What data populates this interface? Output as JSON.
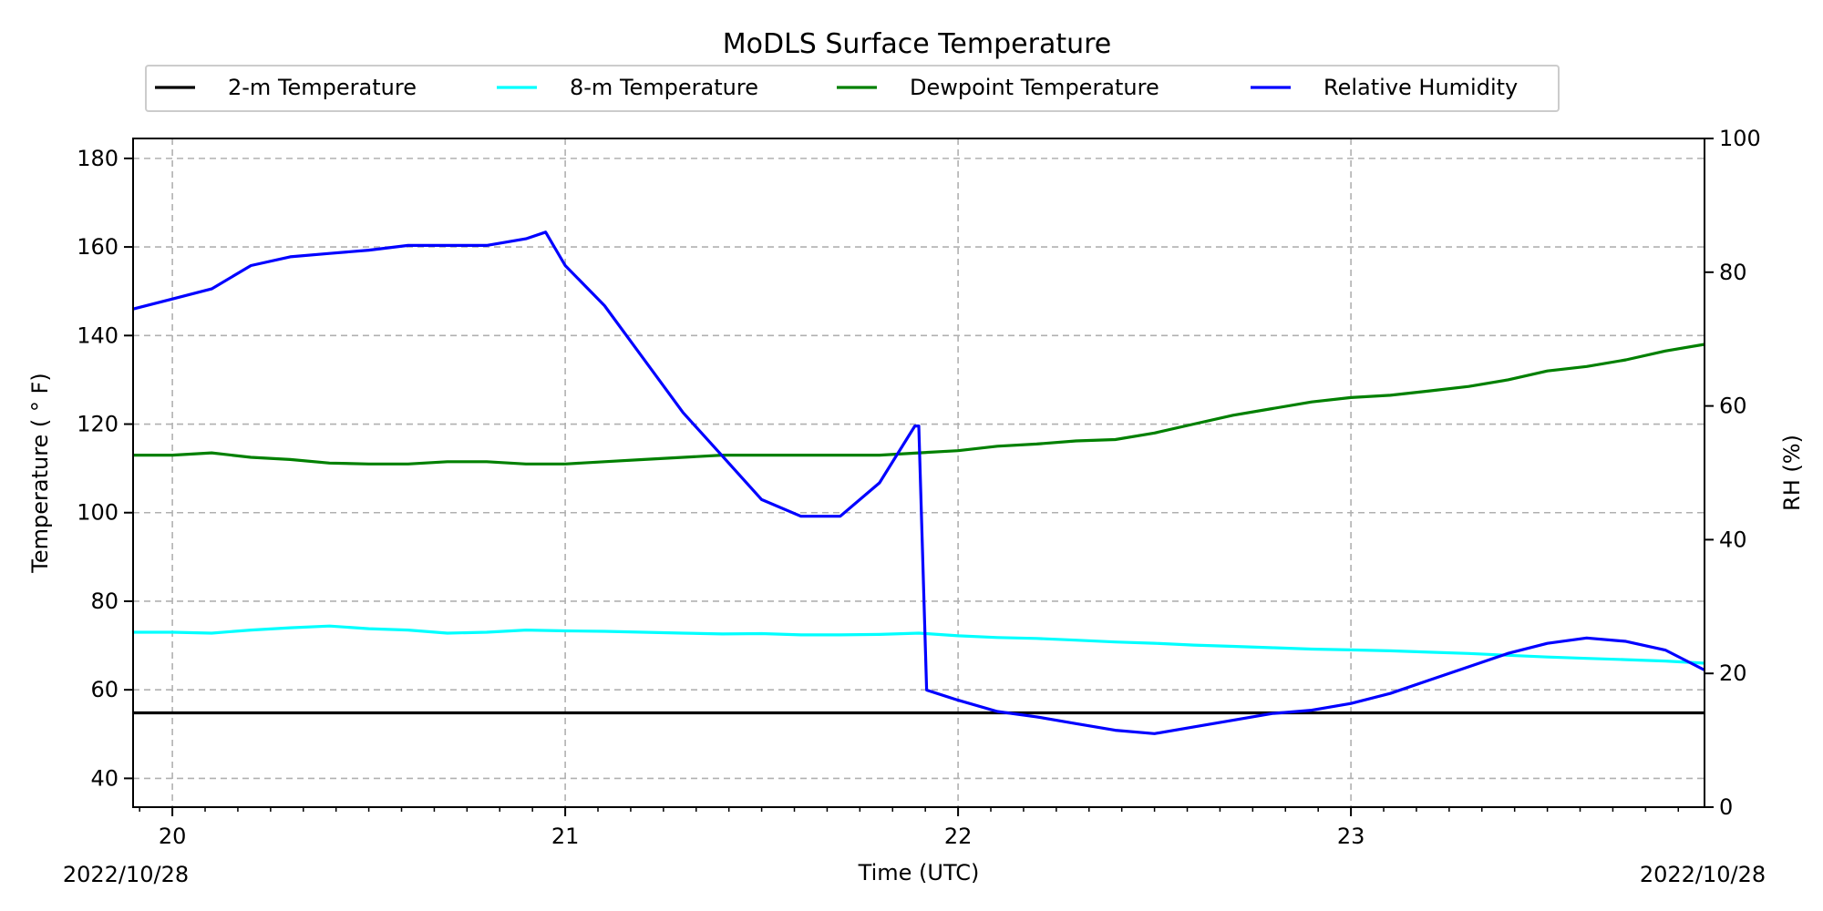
{
  "chart_data": {
    "type": "line",
    "title": "MoDLS Surface Temperature",
    "xlabel": "Time (UTC)",
    "ylabel": "Temperature ($^\\circ$F)",
    "ylabel_display": "Temperature ( ° F)",
    "y2label": "RH (%)",
    "x_unit": "hours (UTC)",
    "xlim": [
      19.9,
      23.9
    ],
    "ylim": [
      33.5,
      184.5
    ],
    "y2lim": [
      0,
      100
    ],
    "x_ticks": [
      20,
      21,
      22,
      23
    ],
    "x_tick_labels": [
      "20",
      "21",
      "22",
      "23"
    ],
    "y_ticks": [
      40,
      60,
      80,
      100,
      120,
      140,
      160,
      180
    ],
    "y_tick_labels": [
      "40",
      "60",
      "80",
      "100",
      "120",
      "140",
      "160",
      "180"
    ],
    "y2_ticks": [
      0,
      20,
      40,
      60,
      80,
      100
    ],
    "y2_tick_labels": [
      "0",
      "20",
      "40",
      "60",
      "80",
      "100"
    ],
    "date_left": "2022/10/28",
    "date_right": "2022/10/28",
    "grid": true,
    "legend_placement": "top-center",
    "series": [
      {
        "name": "2-m Temperature",
        "color": "#000000",
        "axis": "left",
        "x": [
          19.9,
          20.5,
          21.0,
          21.5,
          22.0,
          22.5,
          23.0,
          23.5,
          23.9
        ],
        "y": [
          54.8,
          54.8,
          54.8,
          54.8,
          54.8,
          54.8,
          54.8,
          54.8,
          54.8
        ]
      },
      {
        "name": "8-m Temperature",
        "color": "#00ffff",
        "axis": "left",
        "x": [
          19.9,
          20.0,
          20.1,
          20.2,
          20.3,
          20.4,
          20.5,
          20.6,
          20.7,
          20.8,
          20.9,
          21.0,
          21.1,
          21.2,
          21.3,
          21.4,
          21.5,
          21.6,
          21.7,
          21.8,
          21.9,
          22.0,
          22.1,
          22.2,
          22.3,
          22.4,
          22.5,
          22.6,
          22.7,
          22.8,
          22.9,
          23.0,
          23.1,
          23.2,
          23.3,
          23.4,
          23.5,
          23.6,
          23.7,
          23.8,
          23.9
        ],
        "y": [
          73,
          73,
          72.8,
          73.5,
          74,
          74.4,
          73.8,
          73.5,
          72.8,
          73,
          73.5,
          73.3,
          73.2,
          73,
          72.8,
          72.6,
          72.7,
          72.4,
          72.4,
          72.5,
          72.8,
          72.2,
          71.8,
          71.6,
          71.2,
          70.8,
          70.5,
          70.1,
          69.8,
          69.5,
          69.2,
          69,
          68.8,
          68.5,
          68.2,
          67.8,
          67.4,
          67.1,
          66.8,
          66.5,
          66
        ]
      },
      {
        "name": "Dewpoint Temperature",
        "color": "#008000",
        "axis": "left",
        "x": [
          19.9,
          20.0,
          20.1,
          20.2,
          20.3,
          20.4,
          20.5,
          20.6,
          20.7,
          20.8,
          20.9,
          21.0,
          21.1,
          21.2,
          21.3,
          21.4,
          21.5,
          21.6,
          21.7,
          21.8,
          21.9,
          22.0,
          22.1,
          22.2,
          22.3,
          22.4,
          22.5,
          22.6,
          22.7,
          22.8,
          22.9,
          23.0,
          23.1,
          23.2,
          23.3,
          23.4,
          23.5,
          23.6,
          23.7,
          23.8,
          23.9
        ],
        "y": [
          113,
          113,
          113.5,
          112.5,
          112,
          111.2,
          111,
          111,
          111.5,
          111.5,
          111,
          111,
          111.5,
          112,
          112.5,
          113,
          113,
          113,
          113,
          113,
          113.5,
          114,
          115,
          115.5,
          116.2,
          116.5,
          118,
          120,
          122,
          123.5,
          125,
          126,
          126.5,
          127.5,
          128.5,
          130,
          132,
          133,
          134.5,
          136.5,
          138
        ]
      },
      {
        "name": "Relative Humidity",
        "color": "#0000ff",
        "axis": "right",
        "x": [
          19.9,
          20.0,
          20.1,
          20.2,
          20.3,
          20.4,
          20.5,
          20.6,
          20.7,
          20.8,
          20.9,
          20.95,
          21.0,
          21.1,
          21.2,
          21.3,
          21.4,
          21.5,
          21.6,
          21.7,
          21.8,
          21.89,
          21.9,
          21.92,
          22.0,
          22.1,
          22.2,
          22.3,
          22.4,
          22.5,
          22.6,
          22.7,
          22.8,
          22.9,
          23.0,
          23.1,
          23.2,
          23.3,
          23.4,
          23.5,
          23.6,
          23.7,
          23.8,
          23.9
        ],
        "y": [
          74.5,
          76,
          77.5,
          81,
          82.3,
          82.8,
          83.3,
          84,
          84,
          84,
          85,
          86,
          81,
          75,
          67,
          59,
          52.5,
          46,
          43.5,
          43.5,
          48.5,
          57,
          57,
          17.5,
          16,
          14.3,
          13.5,
          12.5,
          11.5,
          11,
          12,
          13,
          14,
          14.5,
          15.5,
          17,
          19,
          21,
          23,
          24.5,
          25.3,
          24.8,
          23.5,
          20.5
        ]
      }
    ]
  }
}
